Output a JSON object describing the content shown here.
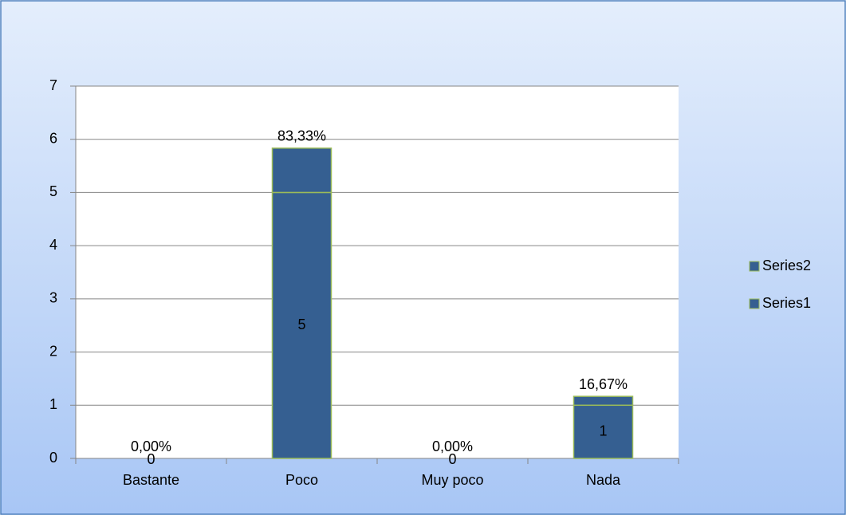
{
  "chart_data": {
    "type": "stacked_bar",
    "categories": [
      "Bastante",
      "Poco",
      "Muy poco",
      "Nada"
    ],
    "series": [
      {
        "name": "Series1",
        "color": "#355f91",
        "values": [
          0,
          5,
          0,
          1
        ]
      },
      {
        "name": "Series2",
        "color": "#355f91",
        "values": [
          0,
          0.8333,
          0,
          0.1667
        ],
        "value_labels": [
          "0,00%",
          "83,33%",
          "0,00%",
          "16,67%"
        ]
      }
    ],
    "ylim": [
      0,
      7
    ],
    "yticks": [
      0,
      1,
      2,
      3,
      4,
      5,
      6,
      7
    ],
    "grid": true,
    "legend": "right"
  }
}
